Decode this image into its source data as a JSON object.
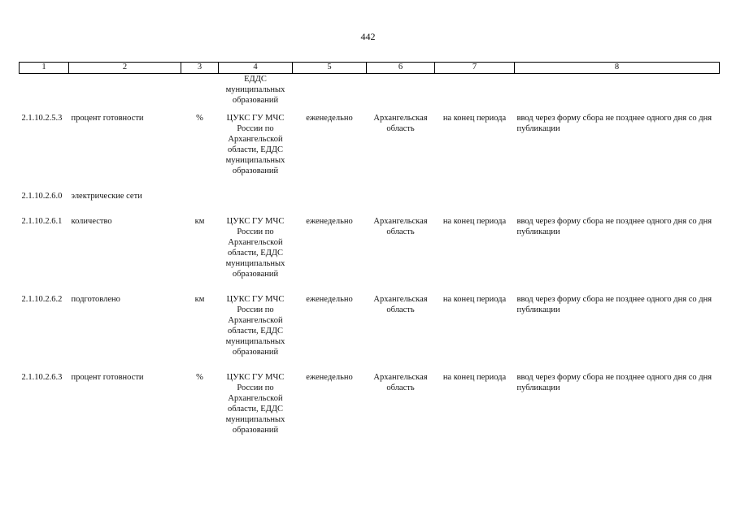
{
  "page_number": "442",
  "header": [
    "1",
    "2",
    "3",
    "4",
    "5",
    "6",
    "7",
    "8"
  ],
  "continuation": {
    "source": "ЕДДС муниципальных образований"
  },
  "rows": [
    {
      "code": "2.1.10.2.5.3",
      "name": "процент готовности",
      "unit": "%",
      "source": "ЦУКС ГУ МЧС России по Архангельской области, ЕДДС муниципальных образований",
      "frequency": "еженедельно",
      "region": "Архангельская область",
      "period": "на конец периода",
      "method": "ввод через форму сбора не позднее одного дня со дня публикации"
    },
    {
      "code": "2.1.10.2.6.0",
      "name": "электрические сети",
      "section": true
    },
    {
      "code": "2.1.10.2.6.1",
      "name": "количество",
      "unit": "км",
      "source": "ЦУКС ГУ МЧС России по Архангельской области, ЕДДС муниципальных образований",
      "frequency": "еженедельно",
      "region": "Архангельская область",
      "period": "на конец периода",
      "method": "ввод через форму сбора не позднее одного дня со дня публикации"
    },
    {
      "code": "2.1.10.2.6.2",
      "name": "подготовлено",
      "unit": "км",
      "source": "ЦУКС ГУ МЧС России по Архангельской области, ЕДДС муниципальных образований",
      "frequency": "еженедельно",
      "region": "Архангельская область",
      "period": "на конец периода",
      "method": "ввод через форму сбора не позднее одного дня со дня публикации"
    },
    {
      "code": "2.1.10.2.6.3",
      "name": "процент готовности",
      "unit": "%",
      "source": "ЦУКС ГУ МЧС России по Архангельской области, ЕДДС муниципальных образований",
      "frequency": "еженедельно",
      "region": "Архангельская область",
      "period": "на конец периода",
      "method": "ввод через форму сбора не позднее одного дня со дня публикации"
    }
  ]
}
